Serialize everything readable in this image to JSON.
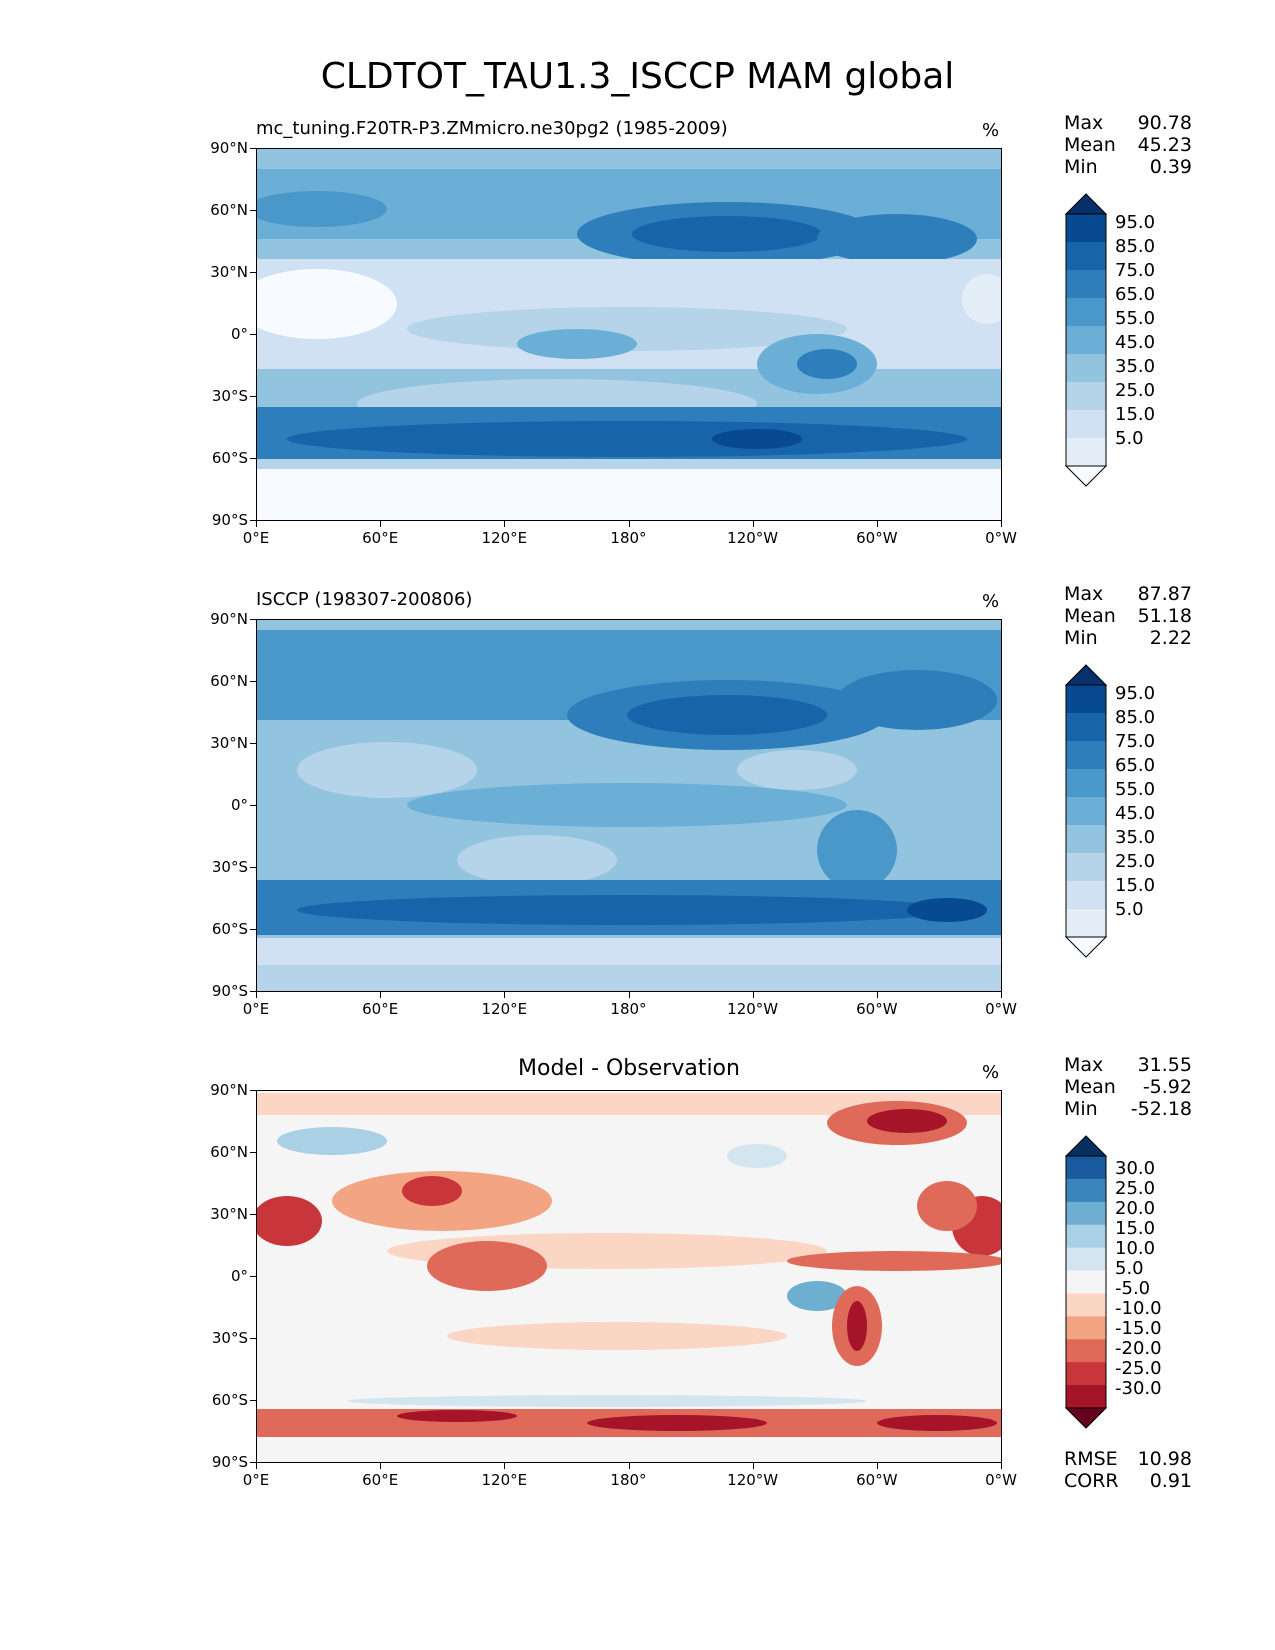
{
  "title": "CLDTOT_TAU1.3_ISCCP MAM global",
  "x_ticks": [
    "0°E",
    "60°E",
    "120°E",
    "180°",
    "120°W",
    "60°W",
    "0°W"
  ],
  "y_ticks": [
    "90°N",
    "60°N",
    "30°N",
    "0°",
    "30°S",
    "60°S",
    "90°S"
  ],
  "panels": [
    {
      "label": "mc_tuning.F20TR-P3.ZMmicro.ne30pg2 (1985-2009)",
      "unit": "%",
      "stats": {
        "max_label": "Max",
        "max": "90.78",
        "mean_label": "Mean",
        "mean": "45.23",
        "min_label": "Min",
        "min": "0.39"
      },
      "colorbar_ticks": [
        "95.0",
        "85.0",
        "75.0",
        "65.0",
        "55.0",
        "45.0",
        "35.0",
        "25.0",
        "15.0",
        "5.0"
      ]
    },
    {
      "label": "ISCCP (198307-200806)",
      "unit": "%",
      "stats": {
        "max_label": "Max",
        "max": "87.87",
        "mean_label": "Mean",
        "mean": "51.18",
        "min_label": "Min",
        "min": "2.22"
      },
      "colorbar_ticks": [
        "95.0",
        "85.0",
        "75.0",
        "65.0",
        "55.0",
        "45.0",
        "35.0",
        "25.0",
        "15.0",
        "5.0"
      ]
    },
    {
      "label": "Model - Observation",
      "unit": "%",
      "stats": {
        "max_label": "Max",
        "max": "31.55",
        "mean_label": "Mean",
        "mean": "-5.92",
        "min_label": "Min",
        "min": "-52.18"
      },
      "colorbar_ticks": [
        "30.0",
        "25.0",
        "20.0",
        "15.0",
        "10.0",
        "5.0",
        "-5.0",
        "-10.0",
        "-15.0",
        "-20.0",
        "-25.0",
        "-30.0"
      ],
      "rmse_label": "RMSE",
      "rmse": "10.98",
      "corr_label": "CORR",
      "corr": "0.91"
    }
  ],
  "colors": {
    "blues": [
      "#f7fbff",
      "#e3eef9",
      "#cfe1f2",
      "#b5d4e9",
      "#93c4df",
      "#6baed6",
      "#4a98c9",
      "#2e7ebc",
      "#1764ab",
      "#084a91",
      "#08306b"
    ],
    "diverging": [
      "#67001f",
      "#a51429",
      "#c8363b",
      "#e06a5a",
      "#f3a583",
      "#fbd6c4",
      "#f5f5f5",
      "#d3e6f0",
      "#a9d0e5",
      "#6eaed1",
      "#3a86bc",
      "#1a5b9f",
      "#053061"
    ]
  }
}
